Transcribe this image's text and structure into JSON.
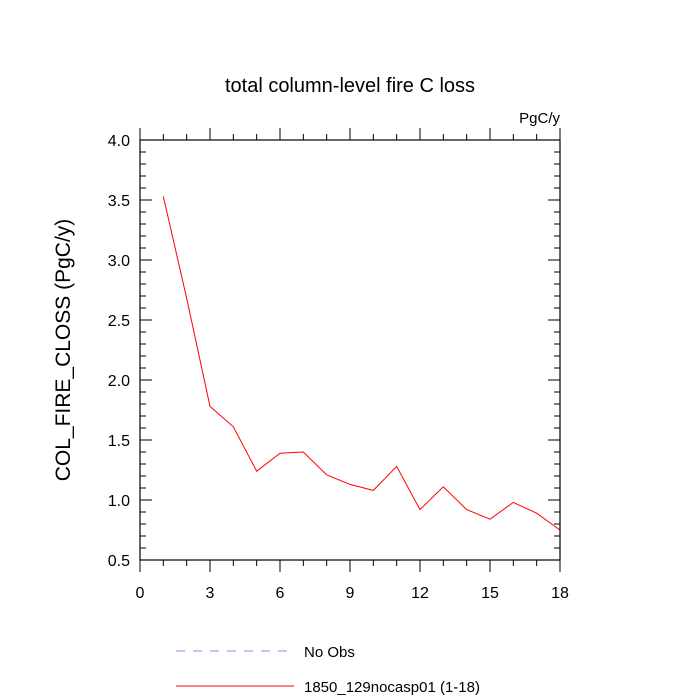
{
  "chart_data": {
    "type": "line",
    "title": "total column-level fire C loss",
    "units_label": "PgC/y",
    "xlabel": "",
    "ylabel": "COL_FIRE_CLOSS  (PgC/y)",
    "xlim": [
      0,
      18
    ],
    "ylim": [
      0.5,
      4.0
    ],
    "x_major_ticks": [
      0,
      3,
      6,
      9,
      12,
      15,
      18
    ],
    "x_tick_labels": [
      "0",
      "3",
      "6",
      "9",
      "12",
      "15",
      "18"
    ],
    "y_major_ticks": [
      0.5,
      1.0,
      1.5,
      2.0,
      2.5,
      3.0,
      3.5,
      4.0
    ],
    "y_tick_labels": [
      "0.5",
      "1.0",
      "1.5",
      "2.0",
      "2.5",
      "3.0",
      "3.5",
      "4.0"
    ],
    "grid": false,
    "legend_position": "bottom",
    "series": [
      {
        "name": "No Obs",
        "color": "#8888ff",
        "dashed": true,
        "x": [],
        "y": []
      },
      {
        "name": "1850_129nocasp01 (1-18)",
        "color": "#ff0000",
        "dashed": false,
        "x": [
          1,
          2,
          3,
          4,
          5,
          6,
          7,
          8,
          9,
          10,
          11,
          12,
          13,
          14,
          15,
          16,
          17,
          18
        ],
        "y": [
          3.53,
          2.68,
          1.78,
          1.61,
          1.24,
          1.39,
          1.4,
          1.21,
          1.13,
          1.08,
          1.28,
          0.92,
          1.11,
          0.92,
          0.84,
          0.98,
          0.89,
          0.75
        ]
      }
    ]
  }
}
